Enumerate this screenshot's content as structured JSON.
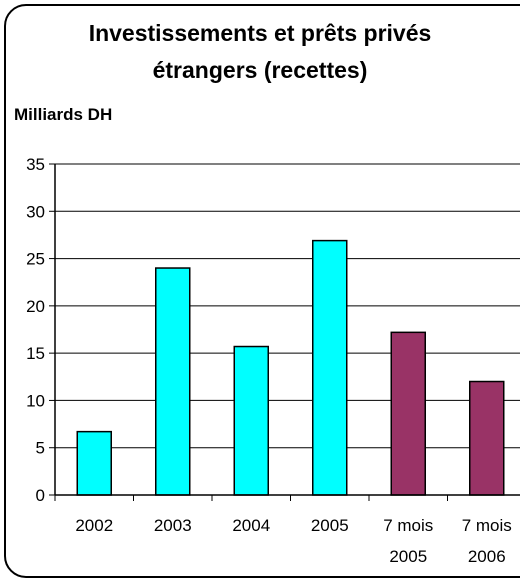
{
  "chart_data": {
    "type": "bar",
    "title": "Investissements et prêts privés étrangers (recettes)",
    "title_lines": [
      "Investissements et prêts privés",
      "étrangers (recettes)"
    ],
    "ylabel": "Milliards DH",
    "xlabel": "",
    "ylim": [
      0,
      35
    ],
    "yticks": [
      0,
      5,
      10,
      15,
      20,
      25,
      30,
      35
    ],
    "grid": true,
    "categories": [
      [
        "2002"
      ],
      [
        "2003"
      ],
      [
        "2004"
      ],
      [
        "2005"
      ],
      [
        "7 mois",
        "2005"
      ],
      [
        "7 mois",
        "2006"
      ]
    ],
    "values": [
      6.7,
      24.0,
      15.7,
      26.9,
      17.2,
      12.0
    ],
    "bar_colors": [
      "#00ffff",
      "#00ffff",
      "#00ffff",
      "#00ffff",
      "#993366",
      "#993366"
    ]
  }
}
